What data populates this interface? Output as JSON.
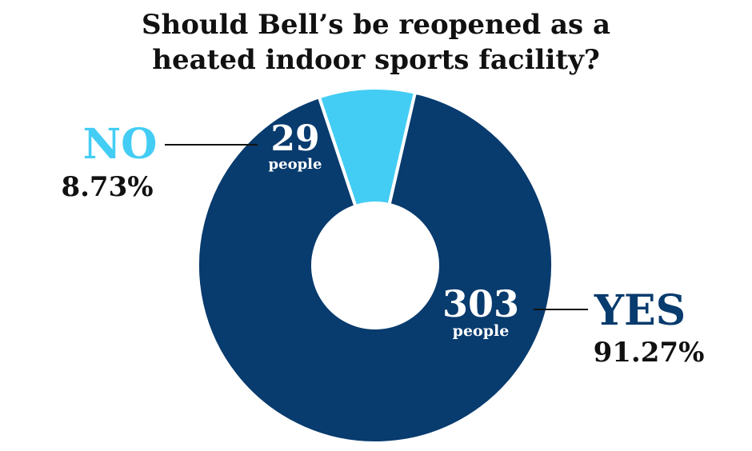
{
  "chart_data": {
    "type": "pie",
    "title_lines": [
      "Should Bell’s be reopened as a",
      "heated indoor sports facility?"
    ],
    "slices": [
      {
        "label": "NO",
        "count": "29",
        "unit": "people",
        "percent_text": "8.73%",
        "value": 8.73,
        "color": "#44cdf4"
      },
      {
        "label": "YES",
        "count": "303",
        "unit": "people",
        "percent_text": "91.27%",
        "value": 91.27,
        "color": "#083b6e"
      }
    ],
    "donut": true,
    "legend": "none"
  }
}
